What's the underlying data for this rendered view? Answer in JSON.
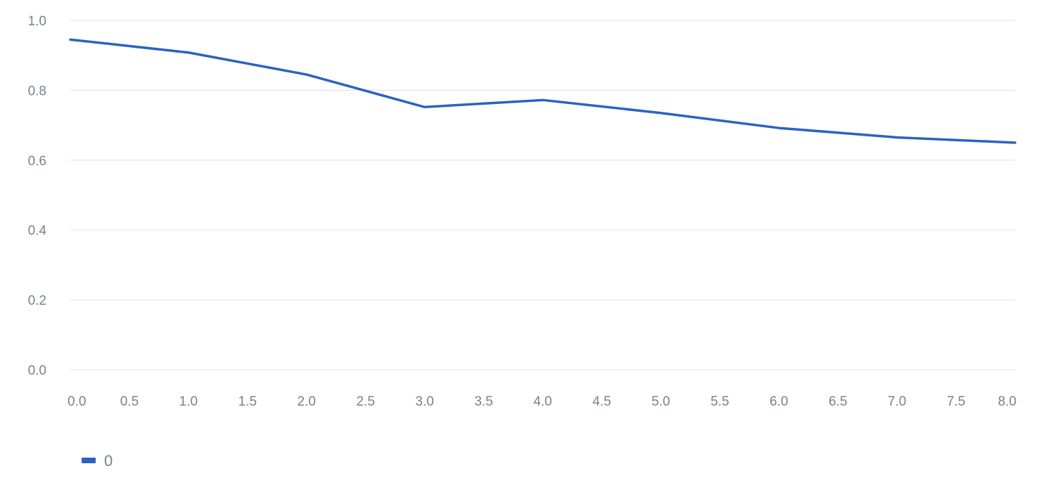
{
  "chart_data": {
    "type": "line",
    "x": [
      0,
      1,
      2,
      3,
      4,
      5,
      6,
      7,
      8
    ],
    "series": [
      {
        "name": "0",
        "color": "#2b63c1",
        "values": [
          0.945,
          0.908,
          0.845,
          0.752,
          0.772,
          0.735,
          0.692,
          0.665,
          0.65
        ]
      }
    ],
    "xlim": [
      0,
      8
    ],
    "ylim": [
      0,
      1.0
    ],
    "x_ticks": [
      "0.0",
      "0.5",
      "1.0",
      "1.5",
      "2.0",
      "2.5",
      "3.0",
      "3.5",
      "4.0",
      "4.5",
      "5.0",
      "5.5",
      "6.0",
      "6.5",
      "7.0",
      "7.5",
      "8.0"
    ],
    "y_ticks": [
      "0.0",
      "0.2",
      "0.4",
      "0.6",
      "0.8",
      "1.0"
    ],
    "grid": "horizontal",
    "legend": "bottom-left",
    "title": "",
    "xlabel": "",
    "ylabel": ""
  }
}
